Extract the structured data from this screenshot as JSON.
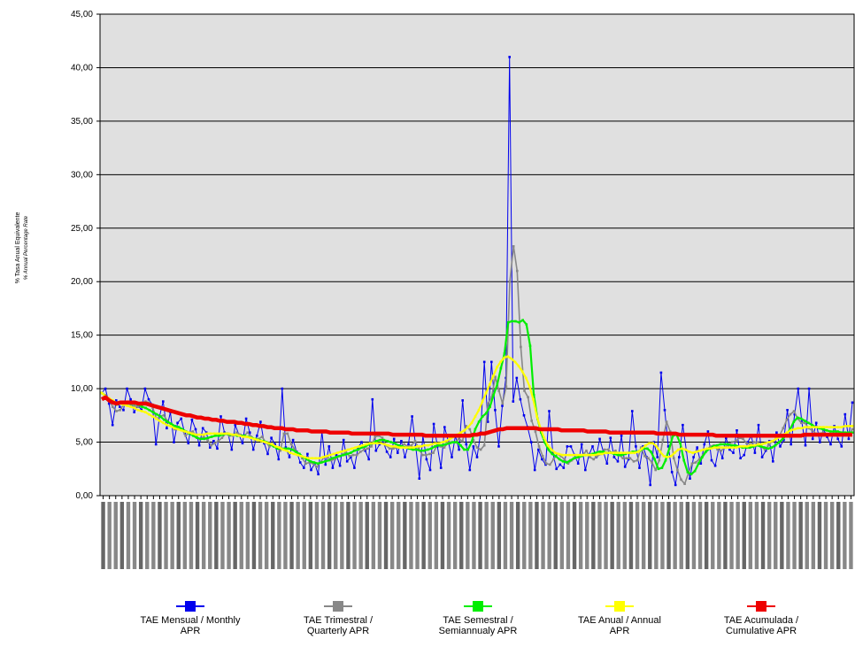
{
  "chart_data": {
    "type": "line",
    "ylabel": "% Tasa Anual Equivalente",
    "ylabel_sub": "% Annual Percentage Rate",
    "ylim": [
      0,
      45
    ],
    "y_ticks": [
      "0,00",
      "5,00",
      "10,00",
      "15,00",
      "20,00",
      "25,00",
      "30,00",
      "35,00",
      "40,00",
      "45,00"
    ],
    "grid": true,
    "legend_position": "bottom",
    "plot_background": "#e0e0e0",
    "x_tick_count": 120,
    "x_tick_labels_note": "illegible rotated date labels",
    "series": [
      {
        "name": "TAE Mensual /    Monthly\nAPR",
        "color": "#0000ee",
        "values": [
          9.6,
          10.0,
          8.6,
          6.6,
          8.9,
          8.3,
          8.0,
          10.0,
          9.0,
          7.8,
          8.5,
          8.0,
          10.0,
          9.0,
          8.5,
          4.8,
          7.4,
          8.8,
          6.3,
          7.8,
          5.0,
          6.8,
          7.2,
          5.8,
          4.9,
          7.1,
          6.2,
          4.7,
          6.3,
          5.9,
          4.5,
          5.1,
          4.4,
          7.4,
          5.9,
          5.8,
          4.3,
          6.6,
          5.7,
          4.9,
          7.2,
          5.9,
          4.3,
          5.6,
          6.9,
          4.9,
          3.9,
          5.4,
          4.8,
          3.4,
          10.0,
          4.5,
          3.6,
          5.2,
          4.1,
          3.1,
          2.6,
          3.9,
          2.4,
          3.0,
          2.0,
          6.0,
          2.9,
          4.6,
          2.6,
          3.8,
          2.8,
          5.2,
          3.2,
          3.6,
          2.6,
          4.5,
          5.0,
          4.2,
          3.4,
          9.0,
          4.2,
          4.8,
          5.0,
          4.1,
          3.6,
          5.3,
          4.0,
          5.1,
          3.6,
          4.8,
          7.4,
          4.6,
          1.6,
          5.6,
          3.4,
          2.4,
          6.7,
          4.6,
          2.6,
          6.4,
          5.1,
          3.6,
          5.6,
          4.3,
          8.9,
          4.8,
          2.4,
          4.6,
          3.6,
          5.9,
          12.5,
          6.9,
          12.5,
          8.0,
          4.6,
          8.4,
          11.0,
          41.0,
          8.8,
          11.0,
          9.0,
          7.5,
          6.4,
          5.0,
          2.4,
          4.3,
          3.4,
          2.9,
          7.9,
          4.0,
          2.5,
          2.9,
          2.6,
          4.6,
          4.6,
          3.8,
          3.0,
          4.8,
          2.4,
          3.8,
          4.6,
          3.6,
          5.3,
          4.1,
          3.0,
          5.4,
          3.6,
          3.2,
          5.6,
          2.7,
          3.4,
          7.9,
          4.6,
          2.6,
          4.6,
          3.6,
          1.0,
          5.0,
          3.6,
          11.5,
          8.0,
          4.6,
          2.2,
          1.0,
          3.6,
          6.6,
          4.2,
          1.6,
          3.6,
          4.5,
          3.0,
          4.8,
          6.0,
          3.3,
          2.8,
          4.5,
          3.5,
          5.4,
          4.3,
          4.0,
          6.1,
          3.5,
          3.8,
          5.0,
          5.6,
          4.0,
          6.6,
          3.6,
          4.2,
          5.1,
          3.2,
          5.9,
          4.6,
          5.2,
          8.0,
          4.8,
          7.6,
          10.0,
          6.9,
          4.7,
          10.0,
          5.3,
          6.8,
          5.0,
          6.2,
          5.5,
          4.8,
          6.5,
          5.3,
          4.6,
          7.6,
          5.3,
          8.7
        ]
      },
      {
        "name": "TAE Trimestral /\nQuarterly APR",
        "color": "#888888",
        "values": [
          9.6,
          9.4,
          9.0,
          8.3,
          7.9,
          8.0,
          8.5,
          8.6,
          8.5,
          8.4,
          8.3,
          8.7,
          8.8,
          8.7,
          8.2,
          7.2,
          7.4,
          7.5,
          7.0,
          6.6,
          6.2,
          6.4,
          6.2,
          5.6,
          5.9,
          6.0,
          5.5,
          5.3,
          5.5,
          5.2,
          4.7,
          4.9,
          5.1,
          5.4,
          5.8,
          5.6,
          5.6,
          5.9,
          5.7,
          5.6,
          5.9,
          5.5,
          5.2,
          5.3,
          5.5,
          5.0,
          4.6,
          4.8,
          4.5,
          4.2,
          5.8,
          5.8,
          4.8,
          4.3,
          3.9,
          3.5,
          3.0,
          3.1,
          3.0,
          2.7,
          3.1,
          3.6,
          3.6,
          3.3,
          3.4,
          3.7,
          3.8,
          4.1,
          3.7,
          3.8,
          3.8,
          4.1,
          4.3,
          4.4,
          4.6,
          5.5,
          5.6,
          5.4,
          4.7,
          4.4,
          4.4,
          4.5,
          4.6,
          4.8,
          4.6,
          4.7,
          5.1,
          4.4,
          3.8,
          3.8,
          3.9,
          4.0,
          4.7,
          4.6,
          4.5,
          5.0,
          5.0,
          5.0,
          5.3,
          5.1,
          6.5,
          6.2,
          5.2,
          4.5,
          4.3,
          4.7,
          8.6,
          9.2,
          11.1,
          9.8,
          8.6,
          10.2,
          20.0,
          23.3,
          21.0,
          13.9,
          9.8,
          9.2,
          7.0,
          6.0,
          4.6,
          3.7,
          3.0,
          2.9,
          3.4,
          3.9,
          3.7,
          3.4,
          3.0,
          3.3,
          3.5,
          3.6,
          3.8,
          4.2,
          3.6,
          3.4,
          3.7,
          3.9,
          4.3,
          4.3,
          4.0,
          4.2,
          3.8,
          3.5,
          3.5,
          3.5,
          3.2,
          3.3,
          4.5,
          3.7,
          3.5,
          3.1,
          2.4,
          3.3,
          5.2,
          6.9,
          6.0,
          3.5,
          2.4,
          1.5,
          1.1,
          2.1,
          3.0,
          3.1,
          3.4,
          3.8,
          4.3,
          4.6,
          4.7,
          4.3,
          4.2,
          4.5,
          4.8,
          5.0,
          5.1,
          5.4,
          5.3,
          4.9,
          4.8,
          5.0,
          5.0,
          4.6,
          4.3,
          4.7,
          5.1,
          5.3,
          5.6,
          6.3,
          7.1,
          7.6,
          7.9,
          7.2,
          6.8,
          6.8,
          6.3,
          6.1,
          5.8,
          5.8,
          5.9,
          5.7,
          5.7,
          5.7,
          5.6,
          5.8,
          5.8,
          5.6,
          6.2
        ]
      },
      {
        "name": "TAE Semestral /\nSemiannualy APR",
        "color": "#00ee00",
        "values": [
          9.6,
          9.3,
          9.0,
          8.7,
          8.5,
          8.6,
          8.6,
          8.6,
          8.6,
          8.6,
          8.5,
          8.3,
          8.2,
          8.0,
          7.8,
          7.6,
          7.4,
          7.1,
          6.9,
          6.7,
          6.5,
          6.4,
          6.2,
          6.0,
          5.8,
          5.6,
          5.4,
          5.3,
          5.3,
          5.4,
          5.5,
          5.6,
          5.6,
          5.7,
          5.8,
          5.7,
          5.7,
          5.6,
          5.6,
          5.6,
          5.5,
          5.4,
          5.3,
          5.2,
          5.1,
          5.0,
          4.8,
          4.6,
          4.4,
          4.4,
          4.4,
          4.4,
          4.3,
          4.1,
          3.9,
          3.6,
          3.4,
          3.2,
          3.1,
          3.0,
          3.1,
          3.2,
          3.3,
          3.5,
          3.6,
          3.7,
          3.8,
          3.9,
          4.0,
          4.2,
          4.3,
          4.5,
          4.6,
          4.8,
          4.9,
          5.1,
          5.2,
          5.2,
          5.1,
          5.0,
          4.9,
          4.7,
          4.6,
          4.5,
          4.4,
          4.3,
          4.3,
          4.2,
          4.2,
          4.3,
          4.4,
          4.6,
          4.7,
          4.7,
          4.8,
          4.9,
          5.0,
          5.0,
          4.7,
          4.3,
          4.3,
          5.0,
          6.2,
          6.9,
          7.4,
          7.7,
          8.3,
          9.4,
          10.4,
          11.9,
          13.3,
          16.2,
          16.3,
          16.3,
          16.2,
          16.4,
          16.0,
          14.0,
          9.4,
          7.2,
          5.9,
          5.0,
          4.3,
          3.9,
          3.7,
          3.4,
          3.2,
          3.1,
          3.3,
          3.5,
          3.6,
          3.7,
          3.8,
          3.8,
          3.9,
          4.0,
          4.1,
          4.1,
          4.0,
          4.0,
          3.9,
          3.8,
          3.8,
          3.9,
          4.0,
          4.1,
          4.1,
          4.2,
          4.4,
          4.4,
          4.1,
          3.4,
          2.5,
          2.6,
          3.3,
          4.4,
          5.6,
          5.7,
          4.9,
          3.3,
          2.2,
          2.0,
          2.3,
          3.0,
          3.6,
          4.1,
          4.4,
          4.6,
          4.7,
          4.8,
          4.8,
          4.8,
          4.7,
          4.7,
          4.6,
          4.5,
          4.5,
          4.5,
          4.6,
          4.7,
          4.6,
          4.5,
          4.4,
          4.5,
          4.7,
          5.0,
          5.3,
          5.7,
          6.2,
          6.9,
          7.3,
          7.2,
          7.0,
          6.8,
          6.6,
          6.4,
          6.3,
          6.2,
          6.1,
          6.0,
          6.0,
          6.0,
          5.9,
          5.9,
          5.9,
          5.9
        ]
      },
      {
        "name": "TAE Anual / Annual\nAPR",
        "color": "#ffff00",
        "values": [
          9.6,
          9.3,
          9.1,
          8.9,
          8.7,
          8.6,
          8.5,
          8.4,
          8.3,
          8.2,
          8.0,
          7.9,
          7.8,
          7.6,
          7.4,
          7.2,
          7.0,
          6.8,
          6.6,
          6.5,
          6.3,
          6.2,
          6.1,
          6.0,
          5.9,
          5.8,
          5.7,
          5.7,
          5.7,
          5.8,
          5.8,
          5.8,
          5.8,
          5.8,
          5.8,
          5.8,
          5.7,
          5.7,
          5.6,
          5.5,
          5.5,
          5.4,
          5.3,
          5.2,
          5.1,
          5.0,
          4.9,
          4.8,
          4.6,
          4.5,
          4.3,
          4.2,
          4.0,
          3.9,
          3.8,
          3.7,
          3.6,
          3.5,
          3.5,
          3.5,
          3.5,
          3.6,
          3.7,
          3.8,
          3.9,
          4.0,
          4.1,
          4.2,
          4.3,
          4.4,
          4.5,
          4.6,
          4.7,
          4.8,
          4.9,
          4.9,
          4.9,
          4.9,
          4.8,
          4.7,
          4.6,
          4.6,
          4.5,
          4.5,
          4.5,
          4.5,
          4.5,
          4.6,
          4.6,
          4.7,
          4.7,
          4.8,
          4.9,
          4.9,
          5.0,
          5.1,
          5.3,
          5.5,
          5.7,
          5.9,
          6.1,
          6.4,
          6.8,
          7.4,
          8.0,
          8.8,
          9.6,
          10.4,
          11.2,
          12.0,
          12.5,
          12.9,
          13.0,
          12.8,
          12.5,
          12.1,
          11.6,
          11.0,
          10.2,
          9.0,
          7.4,
          6.3,
          5.4,
          4.7,
          4.3,
          4.0,
          3.9,
          3.8,
          3.8,
          3.8,
          3.8,
          3.8,
          3.8,
          3.8,
          3.8,
          3.8,
          3.8,
          3.9,
          3.9,
          4.0,
          4.0,
          4.0,
          4.0,
          4.0,
          4.0,
          4.0,
          4.0,
          4.0,
          4.1,
          4.4,
          4.7,
          4.9,
          4.9,
          4.6,
          4.1,
          3.7,
          3.6,
          3.7,
          4.0,
          4.3,
          4.4,
          4.3,
          4.1,
          4.0,
          4.1,
          4.2,
          4.3,
          4.4,
          4.4,
          4.5,
          4.5,
          4.5,
          4.5,
          4.5,
          4.5,
          4.5,
          4.6,
          4.6,
          4.6,
          4.7,
          4.7,
          4.8,
          4.8,
          4.9,
          5.0,
          5.1,
          5.3,
          5.5,
          5.7,
          5.9,
          6.1,
          6.2,
          6.3,
          6.3,
          6.4,
          6.4,
          6.4,
          6.4,
          6.4,
          6.4,
          6.4,
          6.4,
          6.4,
          6.4,
          6.4,
          6.5,
          6.5,
          6.5
        ]
      },
      {
        "name": "TAE Acumulada /\nCumulative APR",
        "color": "#ee0000",
        "values": [
          9.0,
          9.2,
          8.9,
          8.7,
          8.6,
          8.7,
          8.7,
          8.7,
          8.7,
          8.7,
          8.6,
          8.6,
          8.6,
          8.5,
          8.4,
          8.3,
          8.2,
          8.1,
          8.0,
          7.9,
          7.8,
          7.7,
          7.6,
          7.5,
          7.5,
          7.4,
          7.3,
          7.3,
          7.2,
          7.2,
          7.1,
          7.1,
          7.0,
          7.0,
          6.9,
          6.9,
          6.9,
          6.8,
          6.8,
          6.7,
          6.7,
          6.6,
          6.6,
          6.5,
          6.5,
          6.4,
          6.4,
          6.3,
          6.3,
          6.3,
          6.2,
          6.2,
          6.2,
          6.1,
          6.1,
          6.1,
          6.1,
          6.0,
          6.0,
          6.0,
          6.0,
          6.0,
          5.9,
          5.9,
          5.9,
          5.9,
          5.9,
          5.9,
          5.8,
          5.8,
          5.8,
          5.8,
          5.8,
          5.8,
          5.8,
          5.8,
          5.8,
          5.8,
          5.8,
          5.7,
          5.7,
          5.7,
          5.7,
          5.7,
          5.7,
          5.7,
          5.7,
          5.7,
          5.6,
          5.6,
          5.6,
          5.6,
          5.6,
          5.6,
          5.6,
          5.6,
          5.6,
          5.6,
          5.6,
          5.6,
          5.6,
          5.7,
          5.7,
          5.8,
          5.8,
          5.9,
          6.0,
          6.1,
          6.2,
          6.2,
          6.3,
          6.3,
          6.3,
          6.3,
          6.3,
          6.3,
          6.3,
          6.3,
          6.3,
          6.2,
          6.2,
          6.2,
          6.2,
          6.2,
          6.2,
          6.1,
          6.1,
          6.1,
          6.1,
          6.1,
          6.1,
          6.1,
          6.0,
          6.0,
          6.0,
          6.0,
          6.0,
          6.0,
          5.9,
          5.9,
          5.9,
          5.9,
          5.9,
          5.9,
          5.9,
          5.9,
          5.9,
          5.9,
          5.9,
          5.9,
          5.9,
          5.8,
          5.8,
          5.8,
          5.8,
          5.8,
          5.8,
          5.7,
          5.7,
          5.7,
          5.7,
          5.7,
          5.7,
          5.7,
          5.7,
          5.7,
          5.7,
          5.6,
          5.6,
          5.6,
          5.6,
          5.6,
          5.6,
          5.6,
          5.6,
          5.6,
          5.6,
          5.6,
          5.6,
          5.6,
          5.6,
          5.6,
          5.6,
          5.6,
          5.6,
          5.6,
          5.6,
          5.6,
          5.6,
          5.6,
          5.6,
          5.7,
          5.7,
          5.7,
          5.7,
          5.7,
          5.7,
          5.7,
          5.7,
          5.7,
          5.7,
          5.7,
          5.7,
          5.7,
          5.7
        ]
      }
    ]
  }
}
